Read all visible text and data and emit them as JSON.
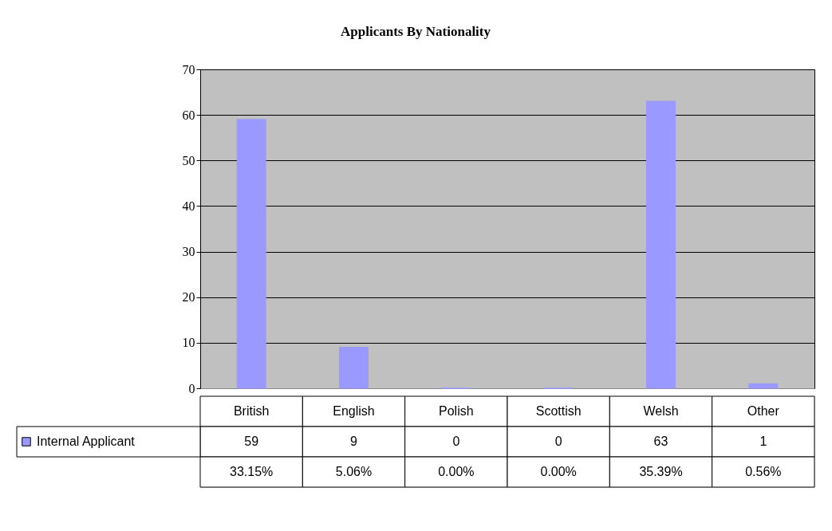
{
  "chart_data": {
    "type": "bar",
    "title": "Applicants By Nationality",
    "categories": [
      "British",
      "English",
      "Polish",
      "Scottish",
      "Welsh",
      "Other"
    ],
    "series": [
      {
        "name": "Internal Applicant",
        "color": "#9999ff",
        "values": [
          59,
          9,
          0,
          0,
          63,
          1
        ]
      }
    ],
    "ylim": [
      0,
      70
    ],
    "yticks": [
      0,
      10,
      20,
      30,
      40,
      50,
      60,
      70
    ],
    "grid": "y",
    "legend": "bottom left",
    "data_labels": true,
    "annotations": [
      "33.15%",
      "5.06%",
      "0.00%",
      "0.00%",
      "35.39%",
      "0.56%"
    ]
  }
}
